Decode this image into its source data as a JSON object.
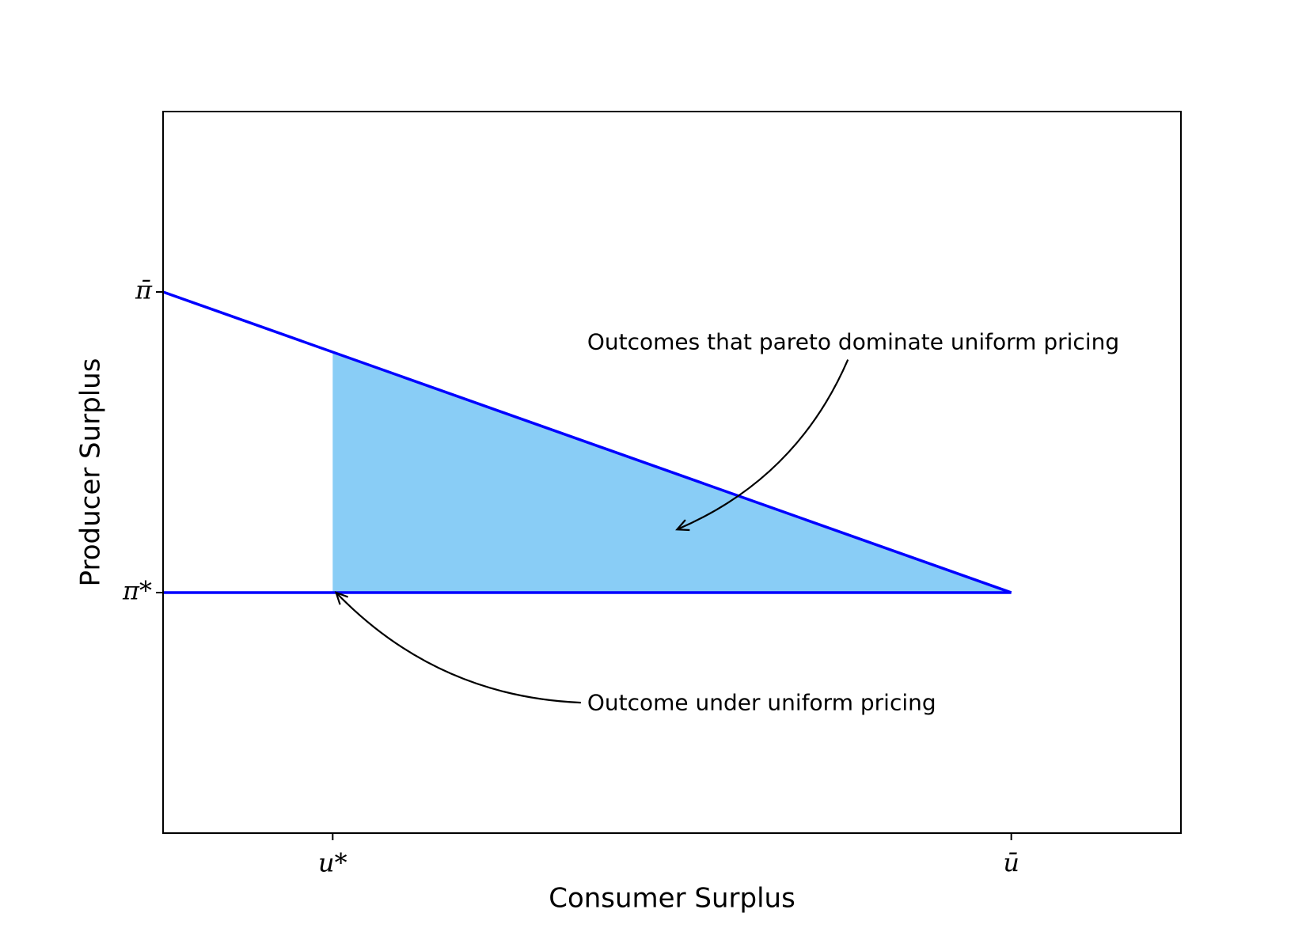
{
  "chart_data": {
    "type": "line",
    "xlabel": "Consumer Surplus",
    "ylabel": "Producer Surplus",
    "xlim": [
      0,
      6
    ],
    "ylim": [
      0.2,
      2.6
    ],
    "xticks": [
      {
        "value": 1,
        "label": "u*"
      },
      {
        "value": 5,
        "label": "ū"
      }
    ],
    "yticks": [
      {
        "value": 1,
        "label": "π*"
      },
      {
        "value": 2,
        "label": "π̄"
      }
    ],
    "grid": false,
    "series": [
      {
        "color": "#0000ff",
        "x": [
          0,
          5
        ],
        "values": [
          2,
          1
        ]
      },
      {
        "color": "#0000ff",
        "x": [
          0,
          5
        ],
        "values": [
          1,
          1
        ]
      }
    ],
    "fill": {
      "color": "#89cdf6",
      "x": [
        1,
        5
      ],
      "upper": [
        1.8,
        1
      ],
      "lower": [
        1,
        1
      ]
    },
    "annotations": [
      {
        "text": "Outcomes that pareto dominate uniform pricing",
        "xy": [
          3.03,
          1.21
        ],
        "xytext": [
          2.5,
          1.83
        ]
      },
      {
        "text": "Outcome under uniform pricing",
        "xy": [
          1.02,
          1.0
        ],
        "xytext": [
          2.5,
          0.63
        ]
      }
    ]
  }
}
